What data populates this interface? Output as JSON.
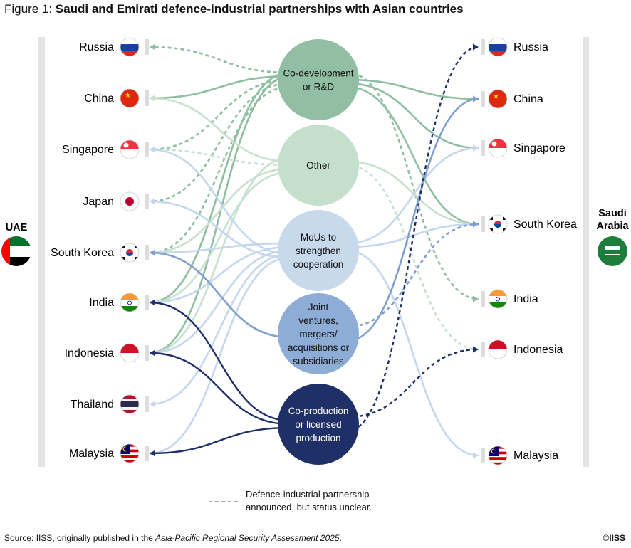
{
  "title": {
    "prefix": "Figure 1:",
    "text": "Saudi and Emirati defence-industrial partnerships with Asian countries"
  },
  "groups": {
    "left": {
      "name": "UAE"
    },
    "right": {
      "name_line1": "Saudi",
      "name_line2": "Arabia"
    }
  },
  "uae_countries": [
    {
      "id": "russia",
      "name": "Russia"
    },
    {
      "id": "china",
      "name": "China"
    },
    {
      "id": "singapore",
      "name": "Singapore"
    },
    {
      "id": "japan",
      "name": "Japan"
    },
    {
      "id": "southkorea",
      "name": "South Korea"
    },
    {
      "id": "india",
      "name": "India"
    },
    {
      "id": "indonesia",
      "name": "Indonesia"
    },
    {
      "id": "thailand",
      "name": "Thailand"
    },
    {
      "id": "malaysia",
      "name": "Malaysia"
    }
  ],
  "saudi_countries": [
    {
      "id": "russia",
      "name": "Russia"
    },
    {
      "id": "china",
      "name": "China"
    },
    {
      "id": "singapore",
      "name": "Singapore"
    },
    {
      "id": "southkorea",
      "name": "South Korea"
    },
    {
      "id": "india",
      "name": "India"
    },
    {
      "id": "indonesia",
      "name": "Indonesia"
    },
    {
      "id": "malaysia",
      "name": "Malaysia"
    }
  ],
  "hubs": [
    {
      "id": "codev",
      "lines": [
        "Co-development",
        "or R&D"
      ],
      "color": "#92bea4",
      "text_color": "#111111"
    },
    {
      "id": "other",
      "lines": [
        "Other"
      ],
      "color": "#c4dfcb",
      "text_color": "#111111"
    },
    {
      "id": "mou",
      "lines": [
        "MoUs to",
        "strengthen",
        "cooperation"
      ],
      "color": "#c8d9ec",
      "text_color": "#111111"
    },
    {
      "id": "jv",
      "lines": [
        "Joint",
        "ventures,",
        "mergers/",
        "acquisitions or",
        "subsidiaries"
      ],
      "color": "#8eadd6",
      "text_color": "#111111"
    },
    {
      "id": "coprod",
      "lines": [
        "Co-production",
        "or licensed",
        "production"
      ],
      "color": "#1f3068",
      "text_color": "#ffffff"
    }
  ],
  "links": [
    {
      "from": "codev",
      "side": "uae",
      "to": "russia",
      "dashed": true
    },
    {
      "from": "codev",
      "side": "uae",
      "to": "china",
      "dashed": false
    },
    {
      "from": "codev",
      "side": "uae",
      "to": "singapore",
      "dashed": true
    },
    {
      "from": "codev",
      "side": "uae",
      "to": "japan",
      "dashed": true
    },
    {
      "from": "codev",
      "side": "uae",
      "to": "southkorea",
      "dashed": true
    },
    {
      "from": "codev",
      "side": "uae",
      "to": "india",
      "dashed": false
    },
    {
      "from": "codev",
      "side": "uae",
      "to": "indonesia",
      "dashed": false
    },
    {
      "from": "codev",
      "side": "saudi",
      "to": "china",
      "dashed": false
    },
    {
      "from": "codev",
      "side": "saudi",
      "to": "singapore",
      "dashed": false
    },
    {
      "from": "codev",
      "side": "saudi",
      "to": "southkorea",
      "dashed": false
    },
    {
      "from": "codev",
      "side": "saudi",
      "to": "india",
      "dashed": true
    },
    {
      "from": "other",
      "side": "uae",
      "to": "china",
      "dashed": false
    },
    {
      "from": "other",
      "side": "uae",
      "to": "singapore",
      "dashed": true
    },
    {
      "from": "other",
      "side": "uae",
      "to": "southkorea",
      "dashed": false
    },
    {
      "from": "other",
      "side": "uae",
      "to": "india",
      "dashed": false
    },
    {
      "from": "other",
      "side": "uae",
      "to": "indonesia",
      "dashed": false
    },
    {
      "from": "other",
      "side": "saudi",
      "to": "southkorea",
      "dashed": false
    },
    {
      "from": "other",
      "side": "saudi",
      "to": "indonesia",
      "dashed": true
    },
    {
      "from": "mou",
      "side": "uae",
      "to": "singapore",
      "dashed": false
    },
    {
      "from": "mou",
      "side": "uae",
      "to": "japan",
      "dashed": false
    },
    {
      "from": "mou",
      "side": "uae",
      "to": "southkorea",
      "dashed": false
    },
    {
      "from": "mou",
      "side": "uae",
      "to": "india",
      "dashed": false
    },
    {
      "from": "mou",
      "side": "uae",
      "to": "indonesia",
      "dashed": false
    },
    {
      "from": "mou",
      "side": "uae",
      "to": "thailand",
      "dashed": false
    },
    {
      "from": "mou",
      "side": "uae",
      "to": "malaysia",
      "dashed": false
    },
    {
      "from": "mou",
      "side": "saudi",
      "to": "singapore",
      "dashed": false
    },
    {
      "from": "mou",
      "side": "saudi",
      "to": "southkorea",
      "dashed": false
    },
    {
      "from": "mou",
      "side": "saudi",
      "to": "malaysia",
      "dashed": false
    },
    {
      "from": "jv",
      "side": "uae",
      "to": "southkorea",
      "dashed": false
    },
    {
      "from": "jv",
      "side": "saudi",
      "to": "china",
      "dashed": false
    },
    {
      "from": "jv",
      "side": "saudi",
      "to": "southkorea",
      "dashed": true
    },
    {
      "from": "coprod",
      "side": "uae",
      "to": "india",
      "dashed": false
    },
    {
      "from": "coprod",
      "side": "uae",
      "to": "indonesia",
      "dashed": false
    },
    {
      "from": "coprod",
      "side": "uae",
      "to": "malaysia",
      "dashed": false
    },
    {
      "from": "coprod",
      "side": "saudi",
      "to": "russia",
      "dashed": true
    },
    {
      "from": "coprod",
      "side": "saudi",
      "to": "indonesia",
      "dashed": true
    }
  ],
  "legend": {
    "text_line1": "Defence-industrial partnership",
    "text_line2": "announced, but status unclear."
  },
  "source": {
    "prefix": "Source: IISS, originally published in the ",
    "publication": "Asia-Pacific Regional Security Assessment 2025",
    "suffix": "."
  },
  "copyright": "©IISS"
}
